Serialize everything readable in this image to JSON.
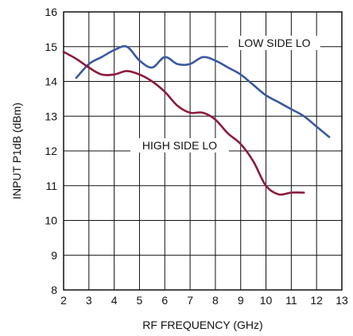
{
  "chart_data": {
    "type": "line",
    "title": "",
    "xlabel": "RF FREQUENCY (GHz)",
    "ylabel": "INPUT P1dB (dBm)",
    "xlim": [
      2,
      13
    ],
    "ylim": [
      8,
      16
    ],
    "xticks": [
      "2",
      "3",
      "4",
      "5",
      "6",
      "7",
      "8",
      "9",
      "10",
      "11",
      "12",
      "13"
    ],
    "yticks": [
      "8",
      "9",
      "10",
      "11",
      "12",
      "13",
      "14",
      "15",
      "16"
    ],
    "grid": true,
    "colors": {
      "low": "#3a58a0",
      "high": "#8a1c3c"
    },
    "annotations": [
      {
        "text": "LOW SIDE LO",
        "series": "low"
      },
      {
        "text": "HIGH SIDE LO",
        "series": "high"
      }
    ],
    "series": [
      {
        "name": "LOW SIDE LO",
        "x": [
          2.5,
          3.0,
          3.5,
          4.0,
          4.5,
          5.0,
          5.5,
          6.0,
          6.5,
          7.0,
          7.5,
          8.0,
          8.5,
          9.0,
          9.5,
          10.0,
          10.5,
          11.0,
          11.5,
          12.0,
          12.5
        ],
        "y": [
          14.1,
          14.5,
          14.7,
          14.9,
          15.0,
          14.6,
          14.4,
          14.7,
          14.5,
          14.5,
          14.7,
          14.6,
          14.4,
          14.2,
          13.9,
          13.6,
          13.4,
          13.2,
          13.0,
          12.7,
          12.4
        ]
      },
      {
        "name": "HIGH SIDE LO",
        "x": [
          2.0,
          2.5,
          3.0,
          3.5,
          4.0,
          4.5,
          5.0,
          5.5,
          6.0,
          6.5,
          7.0,
          7.5,
          8.0,
          8.5,
          9.0,
          9.5,
          10.0,
          10.5,
          11.0,
          11.5
        ],
        "y": [
          14.85,
          14.65,
          14.4,
          14.2,
          14.2,
          14.3,
          14.2,
          14.0,
          13.7,
          13.3,
          13.1,
          13.1,
          12.9,
          12.5,
          12.2,
          11.7,
          11.0,
          10.75,
          10.8,
          10.8
        ]
      }
    ]
  }
}
